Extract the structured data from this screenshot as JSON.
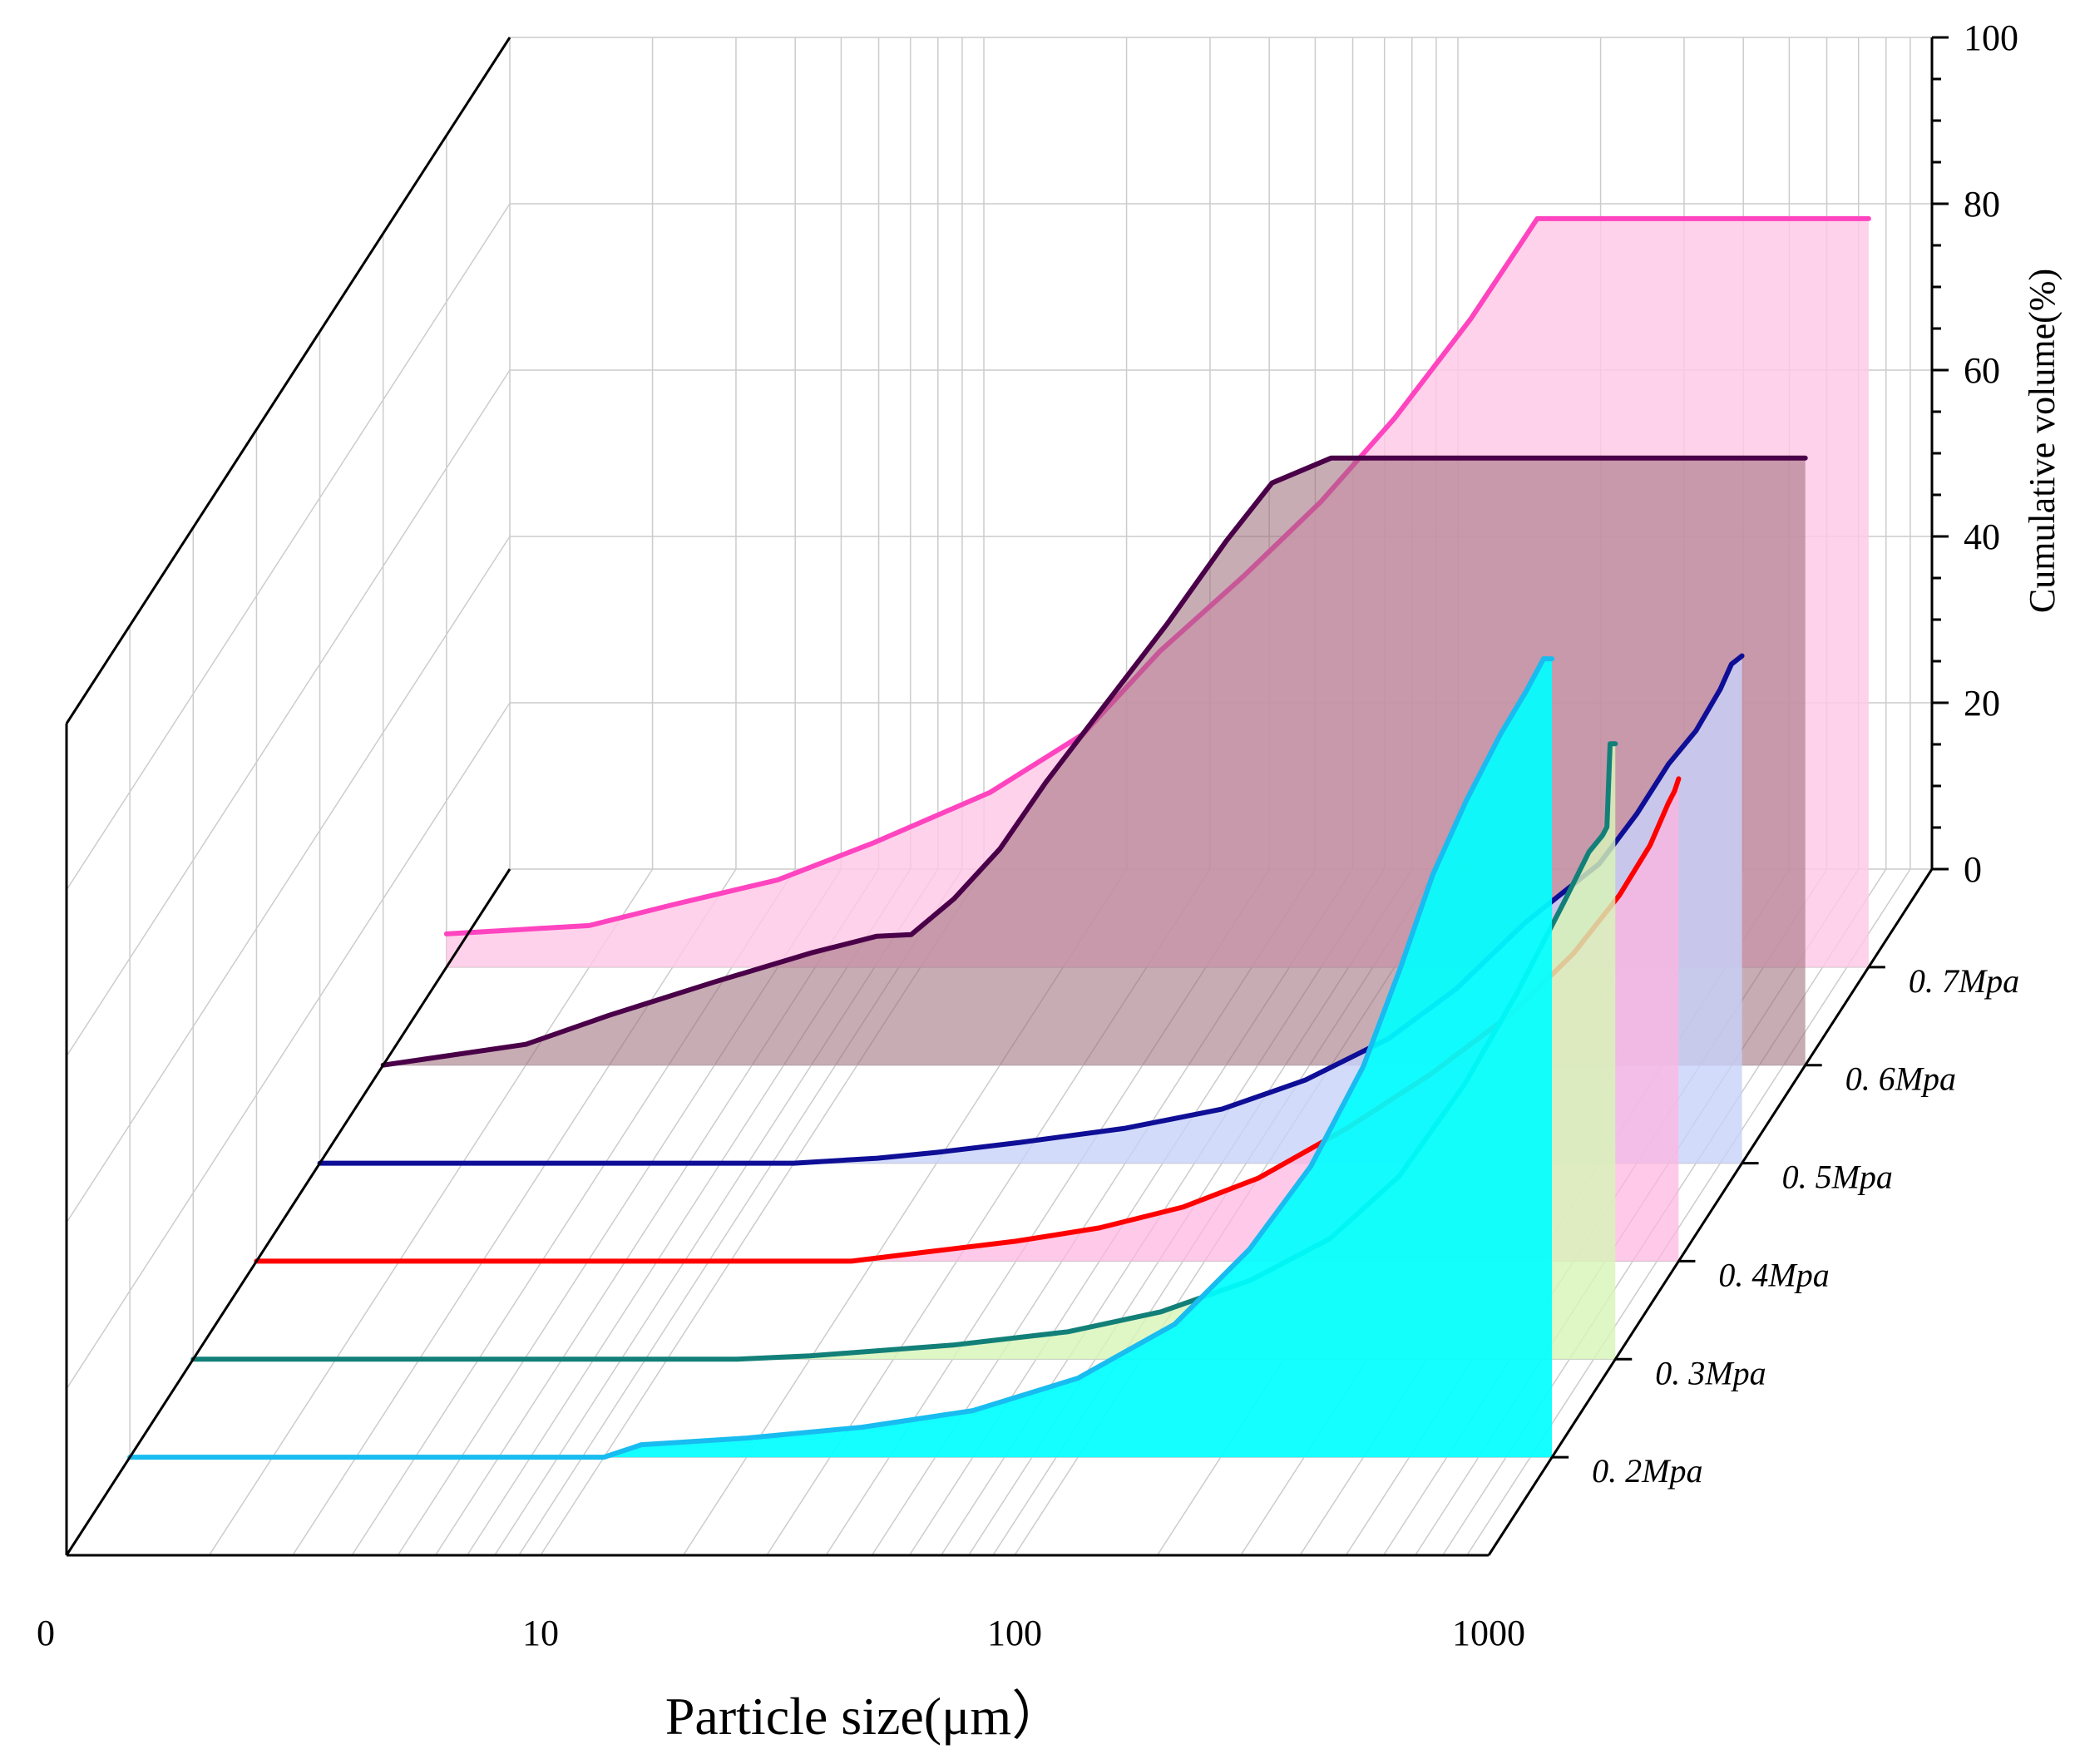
{
  "chart_data": {
    "type": "area",
    "style": "3d-waterfall",
    "title": "",
    "xlabel": "Particle size(μm）",
    "ylabel": "Cumulative volume(%)",
    "x_scale": "log",
    "x_ticks": [
      {
        "label": "0",
        "value": 1
      },
      {
        "label": "10",
        "value": 10
      },
      {
        "label": "100",
        "value": 100
      },
      {
        "label": "1000",
        "value": 1000
      }
    ],
    "ylim": [
      0,
      100
    ],
    "y_ticks": [
      "0",
      "20",
      "40",
      "60",
      "80",
      "100"
    ],
    "grid": true,
    "series": [
      {
        "name": "0. 7Mpa",
        "stroke": "#ff44c0",
        "fill": "#ffc8e6",
        "fill_opacity": 0.82,
        "points": [
          [
            1,
            4
          ],
          [
            2,
            5
          ],
          [
            3,
            7.5
          ],
          [
            5,
            10.5
          ],
          [
            8,
            15
          ],
          [
            14,
            21
          ],
          [
            22,
            28
          ],
          [
            32,
            38
          ],
          [
            48,
            47
          ],
          [
            70,
            56
          ],
          [
            100,
            66
          ],
          [
            145,
            78
          ],
          [
            175,
            85
          ],
          [
            200,
            90
          ],
          [
            1000,
            90
          ]
        ]
      },
      {
        "name": "0. 6Mpa",
        "stroke": "#4a0048",
        "fill": "#9a6876",
        "fill_opacity": 0.55,
        "points": [
          [
            1,
            0
          ],
          [
            2,
            2.5
          ],
          [
            3,
            6
          ],
          [
            5,
            10
          ],
          [
            8,
            13.5
          ],
          [
            11,
            15.5
          ],
          [
            13,
            15.7
          ],
          [
            16,
            20
          ],
          [
            20,
            26
          ],
          [
            25,
            34
          ],
          [
            32,
            42
          ],
          [
            45,
            53
          ],
          [
            60,
            63
          ],
          [
            75,
            70
          ],
          [
            100,
            73
          ],
          [
            1000,
            73
          ]
        ]
      },
      {
        "name": "0. 5Mpa",
        "stroke": "#0e0e96",
        "fill": "#c8d2fa",
        "fill_opacity": 0.8,
        "points": [
          [
            1,
            0
          ],
          [
            10,
            0
          ],
          [
            15,
            0.6
          ],
          [
            20,
            1.3
          ],
          [
            30,
            2.5
          ],
          [
            50,
            4.2
          ],
          [
            80,
            6.5
          ],
          [
            120,
            10
          ],
          [
            180,
            15
          ],
          [
            250,
            21
          ],
          [
            350,
            29
          ],
          [
            500,
            36
          ],
          [
            600,
            42
          ],
          [
            700,
            48
          ],
          [
            800,
            52
          ],
          [
            900,
            57
          ],
          [
            950,
            60
          ],
          [
            1000,
            61
          ]
        ]
      },
      {
        "name": "0. 4Mpa",
        "stroke": "#ff0000",
        "fill": "#ffb4e0",
        "fill_opacity": 0.72,
        "points": [
          [
            1,
            0
          ],
          [
            18,
            0
          ],
          [
            25,
            1
          ],
          [
            40,
            2.4
          ],
          [
            60,
            4
          ],
          [
            90,
            6.5
          ],
          [
            130,
            10
          ],
          [
            200,
            16
          ],
          [
            300,
            22.5
          ],
          [
            450,
            30
          ],
          [
            600,
            37
          ],
          [
            750,
            44
          ],
          [
            870,
            50
          ],
          [
            950,
            55
          ],
          [
            980,
            56.5
          ],
          [
            1000,
            58
          ]
        ]
      },
      {
        "name": "0. 3Mpa",
        "stroke": "#128078",
        "fill": "#d8f4b8",
        "fill_opacity": 0.82,
        "points": [
          [
            1,
            0
          ],
          [
            14,
            0
          ],
          [
            20,
            0.4
          ],
          [
            40,
            1.7
          ],
          [
            70,
            3.3
          ],
          [
            110,
            5.7
          ],
          [
            170,
            9.5
          ],
          [
            250,
            14.5
          ],
          [
            350,
            22
          ],
          [
            480,
            33
          ],
          [
            620,
            44
          ],
          [
            780,
            55
          ],
          [
            880,
            61
          ],
          [
            940,
            63
          ],
          [
            960,
            64
          ],
          [
            975,
            74
          ],
          [
            1000,
            74
          ]
        ]
      },
      {
        "name": "0. 2Mpa",
        "stroke": "#18bcf0",
        "fill": "#00ffff",
        "fill_opacity": 0.92,
        "points": [
          [
            1,
            0
          ],
          [
            10,
            0
          ],
          [
            12,
            1.5
          ],
          [
            20,
            2.3
          ],
          [
            35,
            3.6
          ],
          [
            60,
            5.6
          ],
          [
            100,
            9.5
          ],
          [
            160,
            16
          ],
          [
            230,
            25
          ],
          [
            310,
            35
          ],
          [
            400,
            47
          ],
          [
            480,
            59
          ],
          [
            560,
            70
          ],
          [
            660,
            79
          ],
          [
            780,
            87
          ],
          [
            880,
            92
          ],
          [
            960,
            96
          ],
          [
            1000,
            96
          ]
        ]
      }
    ]
  }
}
